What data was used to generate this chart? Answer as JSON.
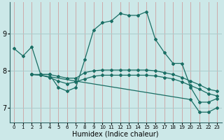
{
  "xlabel": "Humidex (Indice chaleur)",
  "background_color": "#cce8e8",
  "grid_color": "#aacccc",
  "line_color": "#1a6e64",
  "xlim": [
    -0.5,
    23.5
  ],
  "ylim": [
    6.6,
    9.85
  ],
  "yticks": [
    7,
    8,
    9
  ],
  "xticks": [
    0,
    1,
    2,
    3,
    4,
    5,
    6,
    7,
    8,
    9,
    10,
    11,
    12,
    13,
    14,
    15,
    16,
    17,
    18,
    19,
    20,
    21,
    22,
    23
  ],
  "line1_x": [
    0,
    1,
    2,
    3,
    4,
    5,
    6,
    7,
    8,
    9,
    10,
    11,
    12,
    13,
    14,
    15,
    16,
    17,
    18,
    19,
    20,
    21,
    22,
    23
  ],
  "line1_y": [
    8.6,
    8.4,
    8.65,
    7.9,
    7.9,
    7.55,
    7.45,
    7.55,
    8.3,
    9.1,
    9.3,
    9.35,
    9.55,
    9.5,
    9.5,
    9.6,
    8.85,
    8.5,
    8.2,
    8.2,
    7.55,
    7.15,
    7.15,
    7.25
  ],
  "line2_x": [
    2,
    3,
    4,
    5,
    6,
    7,
    8,
    9,
    10,
    11,
    12,
    13,
    14,
    15,
    16,
    17,
    18,
    19,
    20,
    21,
    22,
    23
  ],
  "line2_y": [
    7.9,
    7.9,
    7.9,
    7.85,
    7.8,
    7.8,
    7.95,
    8.0,
    8.02,
    8.02,
    8.02,
    8.02,
    8.02,
    8.02,
    8.0,
    7.95,
    7.9,
    7.82,
    7.72,
    7.62,
    7.5,
    7.45
  ],
  "line3_x": [
    2,
    3,
    4,
    5,
    6,
    7,
    8,
    9,
    10,
    11,
    12,
    13,
    14,
    15,
    16,
    17,
    18,
    19,
    20,
    21,
    22,
    23
  ],
  "line3_y": [
    7.9,
    7.88,
    7.82,
    7.72,
    7.65,
    7.7,
    7.78,
    7.85,
    7.88,
    7.88,
    7.88,
    7.88,
    7.88,
    7.88,
    7.86,
    7.82,
    7.78,
    7.7,
    7.6,
    7.5,
    7.38,
    7.32
  ],
  "line4_x": [
    2,
    3,
    7,
    20,
    21,
    22,
    23
  ],
  "line4_y": [
    7.9,
    7.88,
    7.72,
    7.22,
    6.88,
    6.88,
    7.0
  ]
}
